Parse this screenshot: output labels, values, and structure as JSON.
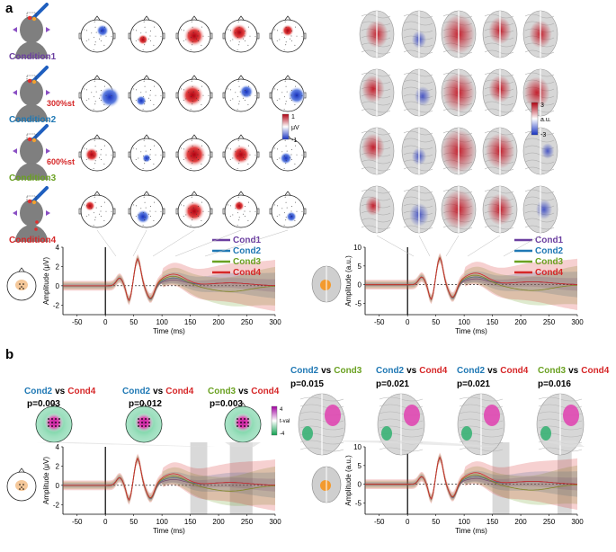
{
  "panels": {
    "a": "a",
    "b": "b"
  },
  "conditions": [
    {
      "name": "Condition1",
      "intensity": "",
      "color": "#6b3fa0"
    },
    {
      "name": "Condition2",
      "intensity": "300%st",
      "color": "#1f78b4"
    },
    {
      "name": "Condition3",
      "intensity": "600%st",
      "color": "#6aa121"
    },
    {
      "name": "Condition4",
      "intensity": "",
      "color": "#d62728"
    }
  ],
  "colorbars": {
    "eeg": {
      "max": "1",
      "unit": "μV",
      "min": "-1"
    },
    "source": {
      "max": "3",
      "unit": "a.u.",
      "min": "-3"
    },
    "tval": {
      "max": "4",
      "unit": "t-val",
      "min": "-4"
    }
  },
  "legend": [
    "Cond1",
    "Cond2",
    "Cond3",
    "Cond4"
  ],
  "comparisons_eeg": [
    {
      "a": "Cond2",
      "b": "Cond4",
      "vs": "vs",
      "p": "p=0.003",
      "color_a": "#1f78b4",
      "color_b": "#d62728"
    },
    {
      "a": "Cond2",
      "b": "Cond4",
      "vs": "vs",
      "p": "p=0.012",
      "color_a": "#1f78b4",
      "color_b": "#d62728"
    },
    {
      "a": "Cond3",
      "b": "Cond4",
      "vs": "vs",
      "p": "p=0.003",
      "color_a": "#6aa121",
      "color_b": "#d62728"
    }
  ],
  "comparisons_source": [
    {
      "a": "Cond2",
      "b": "Cond3",
      "vs": "vs",
      "p": "p=0.015",
      "color_a": "#1f78b4",
      "color_b": "#6aa121"
    },
    {
      "a": "Cond2",
      "b": "Cond4",
      "vs": "vs",
      "p": "p=0.021",
      "color_a": "#1f78b4",
      "color_b": "#d62728"
    },
    {
      "a": "Cond2",
      "b": "Cond4",
      "vs": "vs",
      "p": "p=0.021",
      "color_a": "#1f78b4",
      "color_b": "#d62728"
    },
    {
      "a": "Cond3",
      "b": "Cond4",
      "vs": "vs",
      "p": "p=0.016",
      "color_a": "#6aa121",
      "color_b": "#d62728"
    }
  ],
  "chart_data": [
    {
      "type": "line",
      "id": "a-eeg",
      "xlabel": "Time (ms)",
      "ylabel": "Amplitude (μV)",
      "xlim": [
        -75,
        300
      ],
      "ylim": [
        -3,
        4
      ],
      "xticks": [
        "-50",
        "0",
        "50",
        "100",
        "150",
        "200",
        "250",
        "300"
      ],
      "yticks": [
        "-2",
        "0",
        "2",
        "4"
      ],
      "series": [
        {
          "name": "Cond1",
          "color": "#6b3fa0"
        },
        {
          "name": "Cond2",
          "color": "#1f78b4"
        },
        {
          "name": "Cond3",
          "color": "#6aa121"
        },
        {
          "name": "Cond4",
          "color": "#d62728"
        }
      ]
    },
    {
      "type": "line",
      "id": "a-src",
      "xlabel": "Time (ms)",
      "ylabel": "Amplitude (a.u.)",
      "xlim": [
        -75,
        300
      ],
      "ylim": [
        -8,
        10
      ],
      "xticks": [
        "-50",
        "0",
        "50",
        "100",
        "150",
        "200",
        "250",
        "300"
      ],
      "yticks": [
        "-5",
        "0",
        "5",
        "10"
      ],
      "series": [
        {
          "name": "Cond1",
          "color": "#6b3fa0"
        },
        {
          "name": "Cond2",
          "color": "#1f78b4"
        },
        {
          "name": "Cond3",
          "color": "#6aa121"
        },
        {
          "name": "Cond4",
          "color": "#d62728"
        }
      ]
    },
    {
      "type": "line",
      "id": "b-eeg",
      "xlabel": "Time (ms)",
      "ylabel": "Amplitude (μV)",
      "xlim": [
        -75,
        300
      ],
      "ylim": [
        -3,
        4
      ],
      "xticks": [
        "-50",
        "0",
        "50",
        "100",
        "150",
        "200",
        "250",
        "300"
      ],
      "yticks": [
        "-2",
        "0",
        "2",
        "4"
      ],
      "shaded_windows": [
        [
          150,
          180
        ],
        [
          220,
          260
        ]
      ]
    },
    {
      "type": "line",
      "id": "b-src",
      "xlabel": "Time (ms)",
      "ylabel": "Amplitude (a.u.)",
      "xlim": [
        -75,
        300
      ],
      "ylim": [
        -8,
        10
      ],
      "xticks": [
        "-50",
        "0",
        "50",
        "100",
        "150",
        "200",
        "250",
        "300"
      ],
      "yticks": [
        "-5",
        "0",
        "5",
        "10"
      ],
      "shaded_windows": [
        [
          150,
          180
        ],
        [
          265,
          290
        ]
      ]
    }
  ]
}
